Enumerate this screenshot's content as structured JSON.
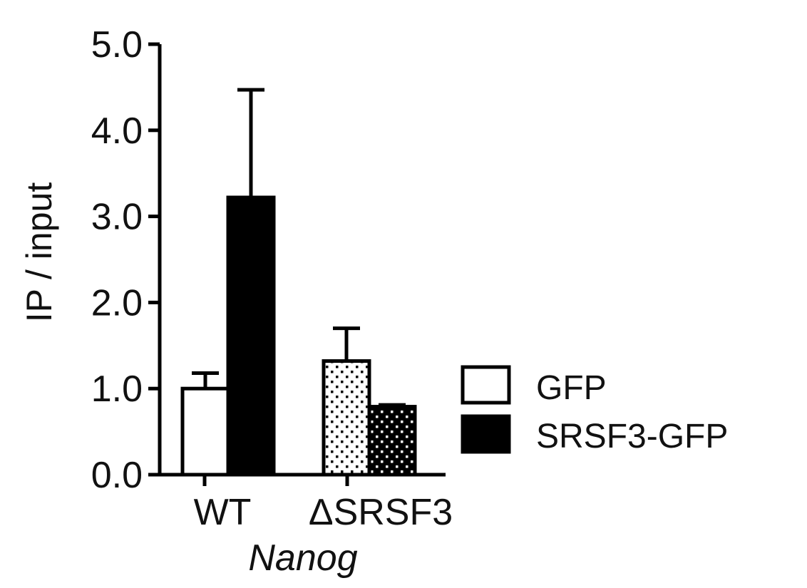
{
  "chart_data": {
    "type": "bar",
    "title": "",
    "xlabel": "Nanog",
    "ylabel": "IP / input",
    "ylim": [
      0,
      5
    ],
    "yticks": [
      "0.0",
      "1.0",
      "2.0",
      "3.0",
      "4.0",
      "5.0"
    ],
    "categories": [
      "WT",
      "ΔSRSF3"
    ],
    "series": [
      {
        "name": "GFP",
        "values": [
          1.0,
          1.32
        ],
        "errors": [
          0.18,
          0.38
        ],
        "color": "#ffffff"
      },
      {
        "name": "SRSF3-GFP",
        "values": [
          3.22,
          0.79
        ],
        "errors": [
          1.25,
          0.02
        ],
        "color": "#000000"
      }
    ],
    "fill_patterns": {
      "WT": "solid",
      "ΔSRSF3": "dotted"
    },
    "grid": false,
    "legend_position": "right"
  }
}
